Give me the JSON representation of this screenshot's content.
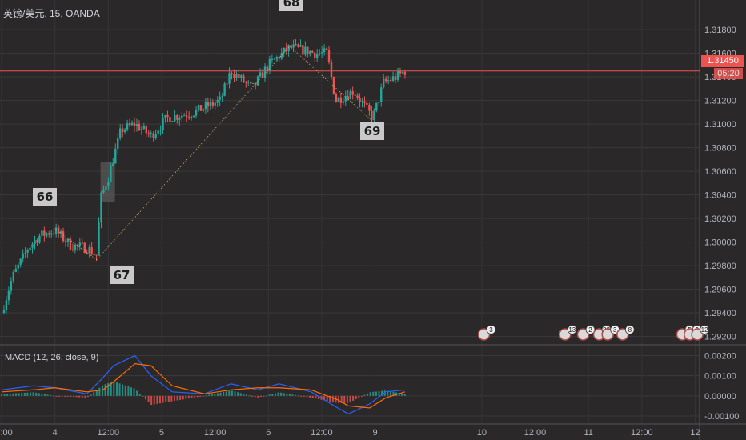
{
  "header": {
    "symbol_line": "英镑/美元, 15, OANDA",
    "macd_line": "MACD (12, 26, close, 9)"
  },
  "price": {
    "current": "1.31450",
    "countdown": "05:20"
  },
  "wave_labels": [
    "66",
    "67",
    "68",
    "69"
  ],
  "x_ticks": [
    {
      "label": "12:00",
      "day": 3.5
    },
    {
      "label": "4",
      "day": 4
    },
    {
      "label": "12:00",
      "day": 4.5
    },
    {
      "label": "5",
      "day": 5
    },
    {
      "label": "12:00",
      "day": 5.5
    },
    {
      "label": "6",
      "day": 6
    },
    {
      "label": "12:00",
      "day": 6.5
    },
    {
      "label": "9",
      "day": 7
    },
    {
      "label": "10",
      "day": 8
    },
    {
      "label": "12:00",
      "day": 8.5
    },
    {
      "label": "11",
      "day": 9
    },
    {
      "label": "12:00",
      "day": 9.5
    },
    {
      "label": "12",
      "day": 10
    }
  ],
  "events": [
    {
      "day": 8.02,
      "count": "3"
    },
    {
      "day": 8.78,
      "count": "13"
    },
    {
      "day": 8.95,
      "count": "2"
    },
    {
      "day": 9.1,
      "count": "22"
    },
    {
      "day": 9.18,
      "count": "3"
    },
    {
      "day": 9.32,
      "count": "8"
    },
    {
      "day": 9.88,
      "count": "5"
    },
    {
      "day": 9.95,
      "count": "9"
    },
    {
      "day": 10.02,
      "count": "12"
    }
  ],
  "colors": {
    "up": "#26a69a",
    "down": "#ef5350",
    "price_line": "#ef5350",
    "macd": "#2962ff",
    "signal": "#ff6d00"
  },
  "chart_data": {
    "type": "candlestick",
    "title": "英镑/美元, 15, OANDA",
    "price_axis": {
      "ylim": [
        1.2917,
        1.3197
      ],
      "ticks": [
        1.318,
        1.316,
        1.314,
        1.312,
        1.31,
        1.308,
        1.306,
        1.304,
        1.302,
        1.3,
        1.298,
        1.296,
        1.294,
        1.292
      ]
    },
    "macd_axis": {
      "ylim": [
        -0.0012,
        0.0023
      ],
      "ticks": [
        0.002,
        0.001,
        0.0,
        -0.001
      ]
    },
    "current_price": 1.3145,
    "wave_points": [
      {
        "label": "66",
        "day": 3.99,
        "price": 1.3012
      },
      {
        "label": "67",
        "day": 4.39,
        "price": 1.2985
      },
      {
        "label": "68",
        "day": 6.2,
        "price": 1.3166
      },
      {
        "label": "69",
        "day": 6.98,
        "price": 1.3102
      }
    ],
    "close_path": [
      {
        "day": 3.5,
        "price": 1.294
      },
      {
        "day": 3.6,
        "price": 1.297
      },
      {
        "day": 3.75,
        "price": 1.2995
      },
      {
        "day": 3.85,
        "price": 1.3005
      },
      {
        "day": 4.0,
        "price": 1.301
      },
      {
        "day": 4.15,
        "price": 1.2997
      },
      {
        "day": 4.3,
        "price": 1.2995
      },
      {
        "day": 4.4,
        "price": 1.2988
      },
      {
        "day": 4.42,
        "price": 1.3035
      },
      {
        "day": 4.5,
        "price": 1.3055
      },
      {
        "day": 4.62,
        "price": 1.3095
      },
      {
        "day": 4.75,
        "price": 1.31
      },
      {
        "day": 4.9,
        "price": 1.309
      },
      {
        "day": 5.05,
        "price": 1.3105
      },
      {
        "day": 5.3,
        "price": 1.311
      },
      {
        "day": 5.55,
        "price": 1.312
      },
      {
        "day": 5.65,
        "price": 1.3145
      },
      {
        "day": 5.85,
        "price": 1.313
      },
      {
        "day": 6.0,
        "price": 1.315
      },
      {
        "day": 6.2,
        "price": 1.3165
      },
      {
        "day": 6.45,
        "price": 1.316
      },
      {
        "day": 6.55,
        "price": 1.316
      },
      {
        "day": 6.63,
        "price": 1.312
      },
      {
        "day": 6.8,
        "price": 1.3128
      },
      {
        "day": 6.98,
        "price": 1.3105
      },
      {
        "day": 7.08,
        "price": 1.3135
      },
      {
        "day": 7.2,
        "price": 1.314
      },
      {
        "day": 7.28,
        "price": 1.3145
      }
    ],
    "macd_path": [
      {
        "day": 3.5,
        "macd": 0.0003,
        "signal": 0.0002
      },
      {
        "day": 3.8,
        "macd": 0.0005,
        "signal": 0.0003
      },
      {
        "day": 4.0,
        "macd": 0.0004,
        "signal": 0.0004
      },
      {
        "day": 4.3,
        "macd": 0.0001,
        "signal": 0.0002
      },
      {
        "day": 4.45,
        "macd": 0.0009,
        "signal": 0.0003
      },
      {
        "day": 4.55,
        "macd": 0.0015,
        "signal": 0.0007
      },
      {
        "day": 4.75,
        "macd": 0.002,
        "signal": 0.0016
      },
      {
        "day": 4.9,
        "macd": 0.001,
        "signal": 0.0015
      },
      {
        "day": 5.1,
        "macd": 0.0002,
        "signal": 0.0005
      },
      {
        "day": 5.4,
        "macd": 0.0001,
        "signal": 0.0001
      },
      {
        "day": 5.65,
        "macd": 0.0006,
        "signal": 0.0003
      },
      {
        "day": 5.9,
        "macd": 0.0003,
        "signal": 0.0004
      },
      {
        "day": 6.1,
        "macd": 0.0006,
        "signal": 0.0004
      },
      {
        "day": 6.4,
        "macd": 0.0002,
        "signal": 0.0003
      },
      {
        "day": 6.65,
        "macd": -0.0006,
        "signal": -0.0002
      },
      {
        "day": 6.75,
        "macd": -0.0009,
        "signal": -0.0005
      },
      {
        "day": 6.95,
        "macd": -0.0004,
        "signal": -0.0006
      },
      {
        "day": 7.1,
        "macd": 0.0002,
        "signal": -0.0001
      },
      {
        "day": 7.28,
        "macd": 0.0003,
        "signal": 0.0002
      }
    ]
  }
}
